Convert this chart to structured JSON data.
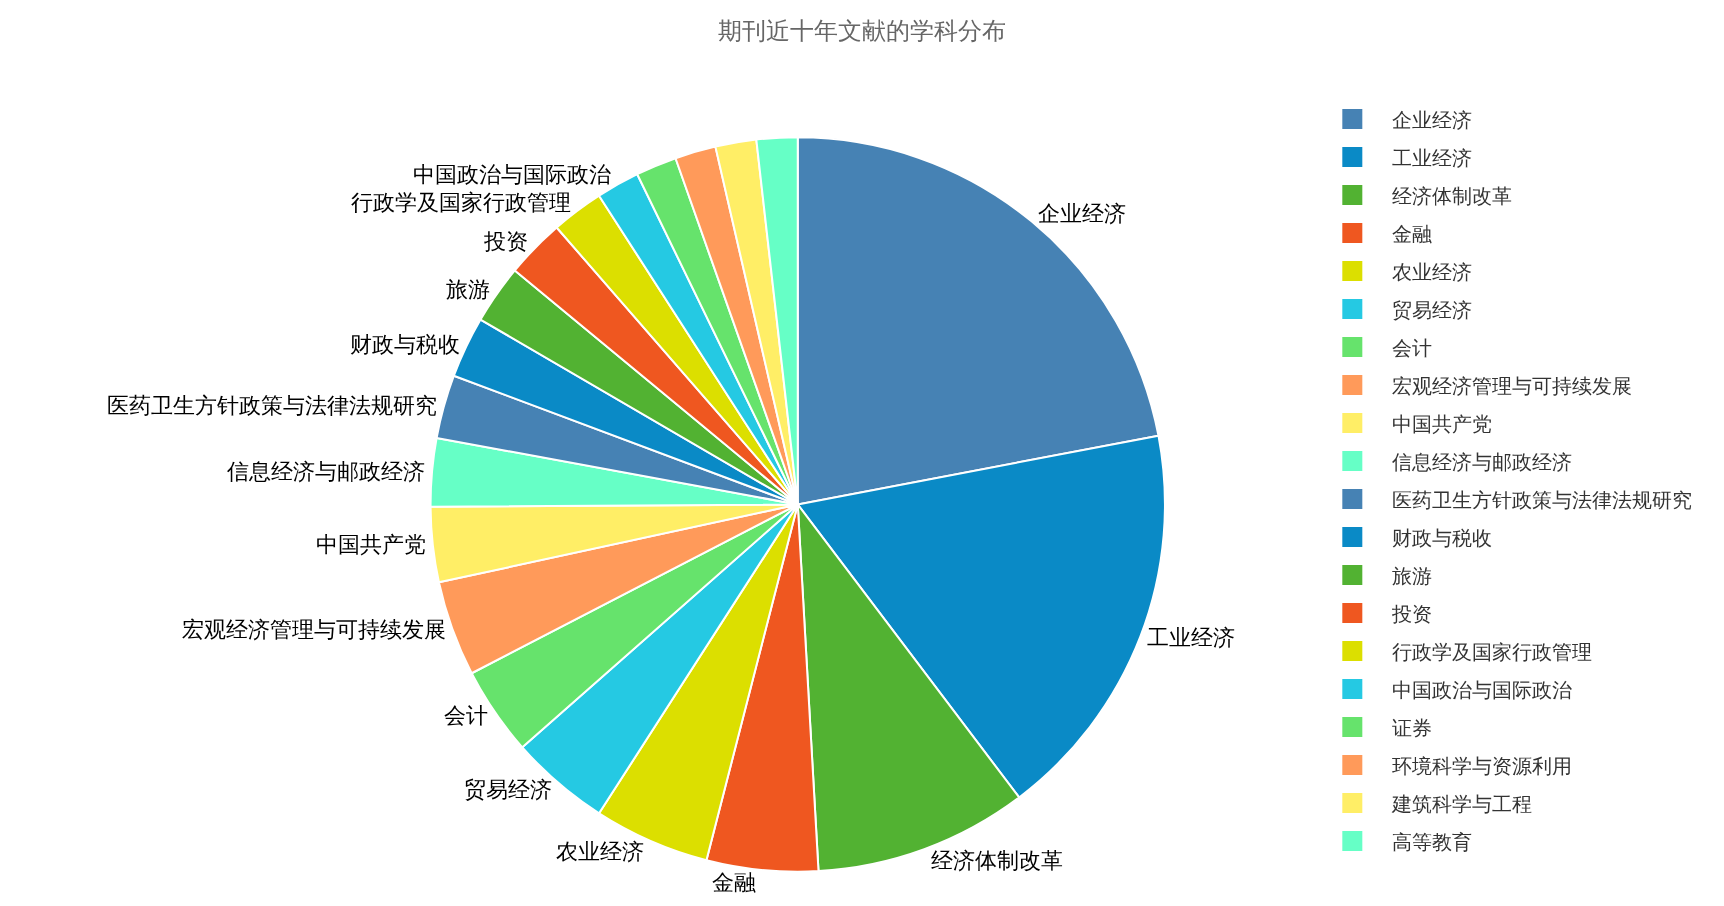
{
  "chart_data": {
    "type": "pie",
    "title": "期刊近十年文献的学科分布",
    "categories": [
      "企业经济",
      "工业经济",
      "经济体制改革",
      "金融",
      "农业经济",
      "贸易经济",
      "会计",
      "宏观经济管理与可持续发展",
      "中国共产党",
      "信息经济与邮政经济",
      "医药卫生方针政策与法律法规研究",
      "财政与税收",
      "旅游",
      "投资",
      "行政学及国家行政管理",
      "中国政治与国际政治",
      "证券",
      "环境科学与资源利用",
      "建筑科学与工程",
      "高等教育"
    ],
    "values": [
      22.0,
      17.7,
      9.4,
      4.9,
      5.1,
      4.4,
      3.9,
      4.2,
      3.3,
      3.0,
      2.8,
      2.7,
      2.6,
      2.6,
      2.3,
      1.9,
      1.8,
      1.8,
      1.8,
      1.8
    ],
    "colors": [
      "#4682b4",
      "#0a8ac6",
      "#52b232",
      "#ef5720",
      "#dcdf00",
      "#25c9e3",
      "#66e36c",
      "#ff9a5a",
      "#ffee66",
      "#66ffc6",
      "#4682b4",
      "#0a8ac6",
      "#52b232",
      "#ef5720",
      "#dcdf00",
      "#25c9e3",
      "#66e36c",
      "#ff9a5a",
      "#ffee66",
      "#66ffc6"
    ],
    "value_labels": [
      "企业经济",
      "工业经济",
      "经济体制改革",
      "金融",
      "农业经济",
      "贸易经济",
      "会计",
      "宏观经济管理与可持续发展",
      "中国共产党",
      "信息经济与邮政经济",
      "医药卫生方针政策与法律法规研究",
      "财政与税收",
      "旅游",
      "投资",
      "行政学及国家行政管理",
      "中国政治与国际政治",
      null,
      null,
      null,
      null
    ],
    "legend": "right"
  }
}
